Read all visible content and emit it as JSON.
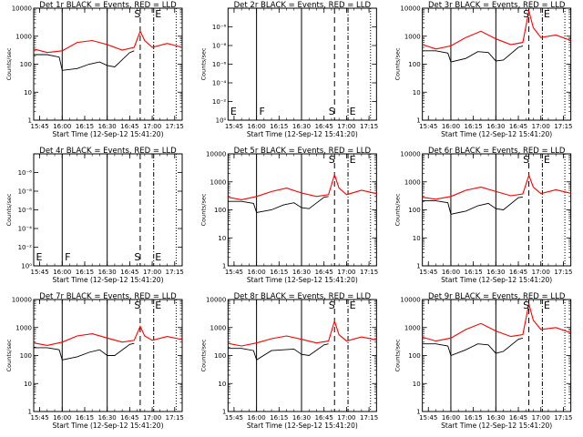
{
  "chart_data": [
    {
      "type": "line",
      "title": "Det 1r BLACK = Events, RED = LLD",
      "ylabel": "Counts/sec",
      "xlabel": "Start Time (12-Sep-12 15:41:20)",
      "scale": "log",
      "ylim": [
        1,
        10000
      ],
      "ytick_labels": [
        "1",
        "10",
        "100",
        "1000",
        "10000"
      ],
      "xtick_labels": [
        "15:45",
        "16:00",
        "16:15",
        "16:30",
        "16:45",
        "17:00",
        "17:15"
      ],
      "solid_lines": [
        "16:00",
        "16:30"
      ],
      "dashed_line": "16:52",
      "dashdot_line": "17:01",
      "dotted_line": "17:16",
      "markers": [
        "S",
        "E"
      ],
      "has_data": true,
      "series": [
        {
          "color": "#000000",
          "x": [
            "15:41",
            "15:50",
            "15:58",
            "16:00",
            "16:10",
            "16:18",
            "16:25",
            "16:30",
            "16:35",
            "16:45",
            "16:48"
          ],
          "y": [
            220,
            220,
            180,
            60,
            70,
            100,
            120,
            90,
            80,
            260,
            300
          ]
        },
        {
          "color": "#ff0000",
          "x": [
            "15:41",
            "15:50",
            "16:00",
            "16:10",
            "16:20",
            "16:30",
            "16:40",
            "16:48",
            "16:52",
            "16:55",
            "17:00",
            "17:10",
            "17:20"
          ],
          "y": [
            350,
            260,
            300,
            600,
            700,
            500,
            320,
            400,
            1500,
            700,
            400,
            550,
            400
          ]
        }
      ]
    },
    {
      "type": "line",
      "title": "Det 2r BLACK = Events, RED = LLD",
      "ylabel": "Counts/sec",
      "xlabel": "Start Time (12-Sep-12 15:41:20)",
      "scale": "log",
      "ylim": [
        1,
        1000000
      ],
      "ytick_labels": [
        "10⁰",
        "10⁻²",
        "10⁻⁴",
        "10⁻⁶",
        "10⁻⁸",
        "10⁻⁶"
      ],
      "xtick_labels": [
        "15:45",
        "16:00",
        "16:15",
        "16:30",
        "16:45",
        "17:00",
        "17:15"
      ],
      "solid_lines": [
        "16:00",
        "16:30"
      ],
      "dashed_line": "16:52",
      "dashdot_line": "17:01",
      "dotted_line": "17:16",
      "markers": [
        "E",
        "F",
        "S",
        "E"
      ],
      "has_data": false,
      "series": []
    },
    {
      "type": "line",
      "title": "Det 3r BLACK = Events, RED = LLD",
      "ylabel": "Counts/sec",
      "xlabel": "Start Time (12-Sep-12 15:41:20)",
      "scale": "log",
      "ylim": [
        1,
        10000
      ],
      "ytick_labels": [
        "1",
        "10",
        "100",
        "1000",
        "10000"
      ],
      "xtick_labels": [
        "15:45",
        "16:00",
        "16:15",
        "16:30",
        "16:45",
        "17:00",
        "17:15"
      ],
      "solid_lines": [
        "16:00",
        "16:30"
      ],
      "dashed_line": "16:52",
      "dashdot_line": "17:01",
      "dotted_line": "17:16",
      "markers": [
        "S",
        "E"
      ],
      "has_data": true,
      "series": [
        {
          "color": "#000000",
          "x": [
            "15:41",
            "15:50",
            "15:58",
            "16:00",
            "16:10",
            "16:18",
            "16:25",
            "16:30",
            "16:35",
            "16:45",
            "16:48"
          ],
          "y": [
            300,
            300,
            250,
            120,
            160,
            280,
            260,
            130,
            140,
            400,
            450
          ]
        },
        {
          "color": "#ff0000",
          "x": [
            "15:41",
            "15:50",
            "16:00",
            "16:10",
            "16:20",
            "16:30",
            "16:40",
            "16:48",
            "16:52",
            "16:55",
            "17:00",
            "17:10",
            "17:20"
          ],
          "y": [
            500,
            350,
            450,
            900,
            1500,
            800,
            500,
            600,
            8000,
            2000,
            900,
            1100,
            700
          ]
        }
      ]
    },
    {
      "type": "line",
      "title": "Det 4r BLACK = Events, RED = LLD",
      "ylabel": "Counts/sec",
      "xlabel": "Start Time (12-Sep-12 15:41:20)",
      "scale": "log",
      "ylim": [
        1,
        1000000
      ],
      "ytick_labels": [
        "10⁰",
        "10⁻²",
        "10⁻⁴",
        "10⁻⁶",
        "10⁻⁸",
        "10⁻⁶"
      ],
      "xtick_labels": [
        "15:45",
        "16:00",
        "16:15",
        "16:30",
        "16:45",
        "17:00",
        "17:15"
      ],
      "solid_lines": [
        "16:00",
        "16:30"
      ],
      "dashed_line": "16:52",
      "dashdot_line": "17:01",
      "dotted_line": "17:16",
      "markers": [
        "E",
        "F",
        "S",
        "E"
      ],
      "has_data": false,
      "series": []
    },
    {
      "type": "line",
      "title": "Det 5r BLACK = Events, RED = LLD",
      "ylabel": "Counts/sec",
      "xlabel": "Start Time (12-Sep-12 15:41:20)",
      "scale": "log",
      "ylim": [
        1,
        10000
      ],
      "ytick_labels": [
        "1",
        "10",
        "100",
        "1000",
        "10000"
      ],
      "xtick_labels": [
        "15:45",
        "16:00",
        "16:15",
        "16:30",
        "16:45",
        "17:00",
        "17:15"
      ],
      "solid_lines": [
        "16:00",
        "16:30"
      ],
      "dashed_line": "16:52",
      "dashdot_line": "17:01",
      "dotted_line": "17:16",
      "markers": [
        "S",
        "E"
      ],
      "has_data": true,
      "series": [
        {
          "color": "#000000",
          "x": [
            "15:41",
            "15:50",
            "15:58",
            "16:00",
            "16:10",
            "16:18",
            "16:25",
            "16:30",
            "16:35",
            "16:45",
            "16:48"
          ],
          "y": [
            200,
            200,
            170,
            80,
            100,
            150,
            180,
            120,
            110,
            280,
            300
          ]
        },
        {
          "color": "#ff0000",
          "x": [
            "15:41",
            "15:50",
            "16:00",
            "16:10",
            "16:20",
            "16:30",
            "16:40",
            "16:48",
            "16:52",
            "16:55",
            "17:00",
            "17:10",
            "17:20"
          ],
          "y": [
            280,
            230,
            300,
            450,
            600,
            400,
            300,
            350,
            1800,
            600,
            350,
            500,
            380
          ]
        }
      ]
    },
    {
      "type": "line",
      "title": "Det 6r BLACK = Events, RED = LLD",
      "ylabel": "Counts/sec",
      "xlabel": "Start Time (12-Sep-12 15:41:20)",
      "scale": "log",
      "ylim": [
        1,
        10000
      ],
      "ytick_labels": [
        "1",
        "10",
        "100",
        "1000",
        "10000"
      ],
      "xtick_labels": [
        "15:45",
        "16:00",
        "16:15",
        "16:30",
        "16:45",
        "17:00",
        "17:15"
      ],
      "solid_lines": [
        "16:00",
        "16:30"
      ],
      "dashed_line": "16:52",
      "dashdot_line": "17:01",
      "dotted_line": "17:16",
      "markers": [
        "S",
        "E"
      ],
      "has_data": true,
      "series": [
        {
          "color": "#000000",
          "x": [
            "15:41",
            "15:50",
            "15:58",
            "16:00",
            "16:10",
            "16:18",
            "16:25",
            "16:30",
            "16:35",
            "16:45",
            "16:48"
          ],
          "y": [
            210,
            210,
            180,
            70,
            90,
            140,
            170,
            110,
            100,
            270,
            290
          ]
        },
        {
          "color": "#ff0000",
          "x": [
            "15:41",
            "15:50",
            "16:00",
            "16:10",
            "16:20",
            "16:30",
            "16:40",
            "16:48",
            "16:52",
            "16:55",
            "17:00",
            "17:10",
            "17:20"
          ],
          "y": [
            280,
            240,
            300,
            500,
            650,
            450,
            320,
            370,
            1700,
            650,
            380,
            520,
            390
          ]
        }
      ]
    },
    {
      "type": "line",
      "title": "Det 7r BLACK = Events, RED = LLD",
      "ylabel": "Counts/sec",
      "xlabel": "Start Time (12-Sep-12 15:41:20)",
      "scale": "log",
      "ylim": [
        1,
        10000
      ],
      "ytick_labels": [
        "1",
        "10",
        "100",
        "1000",
        "10000"
      ],
      "xtick_labels": [
        "15:45",
        "16:00",
        "16:15",
        "16:30",
        "16:45",
        "17:00",
        "17:15"
      ],
      "solid_lines": [
        "16:00",
        "16:30"
      ],
      "dashed_line": "16:52",
      "dashdot_line": "17:01",
      "dotted_line": "17:16",
      "markers": [
        "S",
        "E"
      ],
      "has_data": true,
      "series": [
        {
          "color": "#000000",
          "x": [
            "15:41",
            "15:50",
            "15:58",
            "16:00",
            "16:10",
            "16:18",
            "16:25",
            "16:30",
            "16:35",
            "16:45",
            "16:48"
          ],
          "y": [
            190,
            190,
            160,
            70,
            90,
            130,
            160,
            100,
            100,
            250,
            270
          ]
        },
        {
          "color": "#ff0000",
          "x": [
            "15:41",
            "15:50",
            "16:00",
            "16:10",
            "16:20",
            "16:30",
            "16:40",
            "16:48",
            "16:52",
            "16:55",
            "17:00",
            "17:10",
            "17:20"
          ],
          "y": [
            280,
            230,
            300,
            500,
            600,
            420,
            300,
            350,
            1100,
            500,
            350,
            480,
            370
          ]
        }
      ]
    },
    {
      "type": "line",
      "title": "Det 8r BLACK = Events, RED = LLD",
      "ylabel": "Counts/sec",
      "xlabel": "Start Time (12-Sep-12 15:41:20)",
      "scale": "log",
      "ylim": [
        1,
        10000
      ],
      "ytick_labels": [
        "1",
        "10",
        "100",
        "1000",
        "10000"
      ],
      "xtick_labels": [
        "15:45",
        "16:00",
        "16:15",
        "16:30",
        "16:45",
        "17:00",
        "17:15"
      ],
      "solid_lines": [
        "16:00",
        "16:30"
      ],
      "dashed_line": "16:52",
      "dashdot_line": "17:01",
      "dotted_line": "17:16",
      "markers": [
        "S",
        "E"
      ],
      "has_data": true,
      "series": [
        {
          "color": "#000000",
          "x": [
            "15:41",
            "15:50",
            "15:58",
            "16:00",
            "16:10",
            "16:18",
            "16:25",
            "16:30",
            "16:35",
            "16:45",
            "16:48"
          ],
          "y": [
            180,
            180,
            150,
            70,
            150,
            160,
            170,
            110,
            100,
            240,
            260
          ]
        },
        {
          "color": "#ff0000",
          "x": [
            "15:41",
            "15:50",
            "16:00",
            "16:10",
            "16:20",
            "16:30",
            "16:40",
            "16:48",
            "16:52",
            "16:55",
            "17:00",
            "17:10",
            "17:20"
          ],
          "y": [
            270,
            220,
            280,
            400,
            500,
            380,
            280,
            330,
            1700,
            550,
            330,
            460,
            360
          ]
        }
      ]
    },
    {
      "type": "line",
      "title": "Det 9r BLACK = Events, RED = LLD",
      "ylabel": "Counts/sec",
      "xlabel": "Start Time (12-Sep-12 15:41:20)",
      "scale": "log",
      "ylim": [
        1,
        10000
      ],
      "ytick_labels": [
        "1",
        "10",
        "100",
        "1000",
        "10000"
      ],
      "xtick_labels": [
        "15:45",
        "16:00",
        "16:15",
        "16:30",
        "16:45",
        "17:00",
        "17:15"
      ],
      "solid_lines": [
        "16:00",
        "16:30"
      ],
      "dashed_line": "16:52",
      "dashdot_line": "17:01",
      "dotted_line": "17:16",
      "markers": [
        "S",
        "E"
      ],
      "has_data": true,
      "series": [
        {
          "color": "#000000",
          "x": [
            "15:41",
            "15:50",
            "15:58",
            "16:00",
            "16:10",
            "16:18",
            "16:25",
            "16:30",
            "16:35",
            "16:45",
            "16:48"
          ],
          "y": [
            260,
            260,
            220,
            100,
            160,
            260,
            240,
            120,
            140,
            380,
            420
          ]
        },
        {
          "color": "#ff0000",
          "x": [
            "15:41",
            "15:50",
            "16:00",
            "16:10",
            "16:20",
            "16:30",
            "16:40",
            "16:48",
            "16:52",
            "16:55",
            "17:00",
            "17:10",
            "17:20"
          ],
          "y": [
            450,
            330,
            420,
            850,
            1400,
            750,
            480,
            560,
            7000,
            1800,
            850,
            1000,
            650
          ]
        }
      ]
    }
  ]
}
